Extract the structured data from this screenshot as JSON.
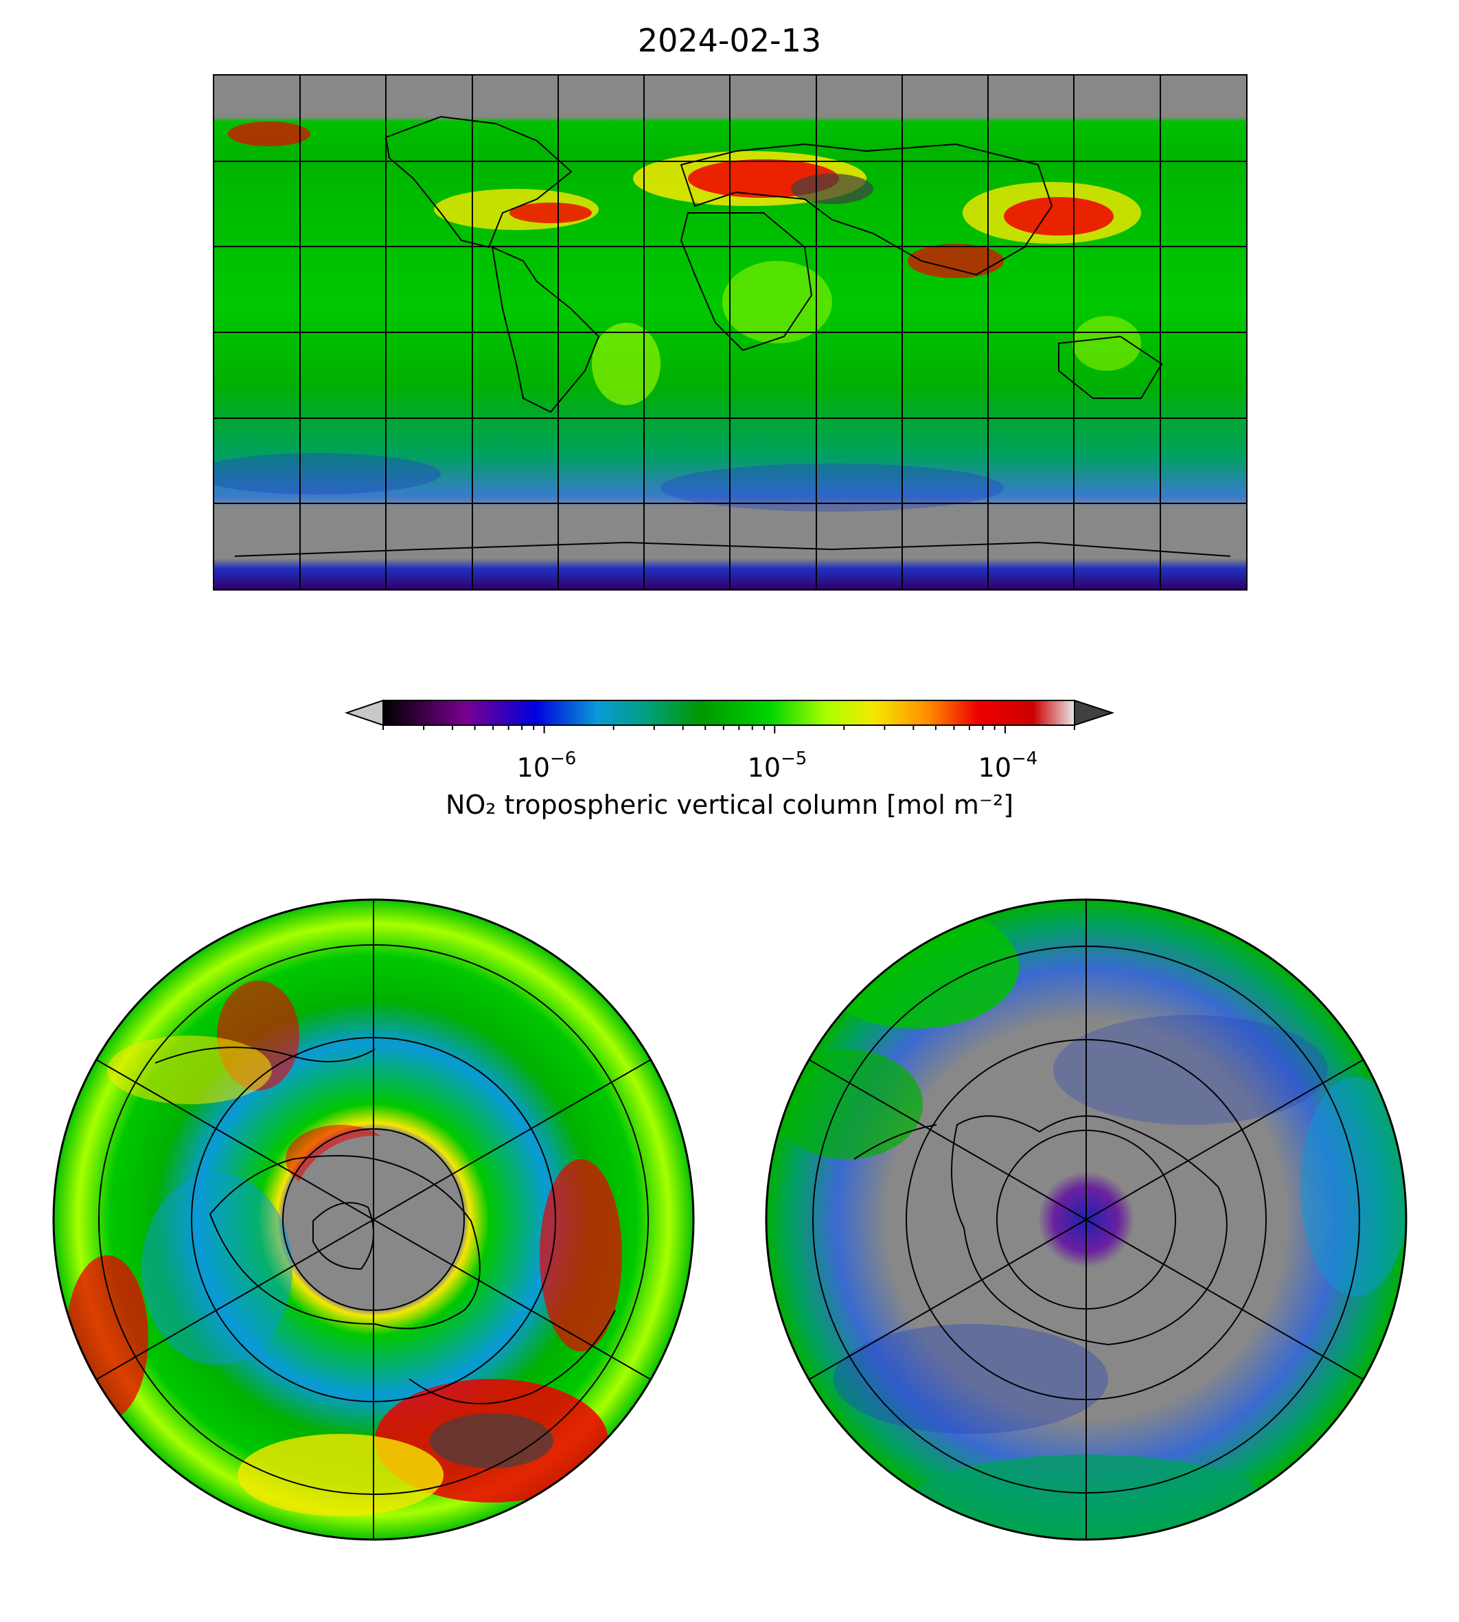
{
  "figure": {
    "title": "2024-02-13"
  },
  "colorbar": {
    "label": "NO₂ tropospheric vertical column [mol m⁻²]",
    "scale": "log",
    "range": [
      2e-07,
      0.0002
    ],
    "ticks": [
      {
        "base": "10",
        "exp": "−6",
        "value": 1e-06
      },
      {
        "base": "10",
        "exp": "−5",
        "value": 1e-05
      },
      {
        "base": "10",
        "exp": "−4",
        "value": 0.0001
      }
    ],
    "extend": "both",
    "colormap": [
      "#000000",
      "#7a0090",
      "#0000dd",
      "#0a9ad8",
      "#00a080",
      "#009800",
      "#00d400",
      "#a8ff00",
      "#f6e800",
      "#ff8a00",
      "#ee0000",
      "#cc0000",
      "#e8e8e8"
    ],
    "under_color": "#c8c8c8",
    "over_color": "#404040"
  },
  "maps": [
    {
      "name": "global",
      "projection": "plate carree",
      "lat_range": [
        -90,
        90
      ],
      "lon_range": [
        -180,
        180
      ],
      "gridlines": "30 degree"
    },
    {
      "name": "north-polar",
      "projection": "north polar stereographic",
      "gridlines": "latitude circles and 30 degree meridians"
    },
    {
      "name": "south-polar",
      "projection": "south polar stereographic",
      "gridlines": "latitude circles and 30 degree meridians"
    }
  ],
  "colors": {
    "nodata": "#888888",
    "grid": "#000000"
  }
}
